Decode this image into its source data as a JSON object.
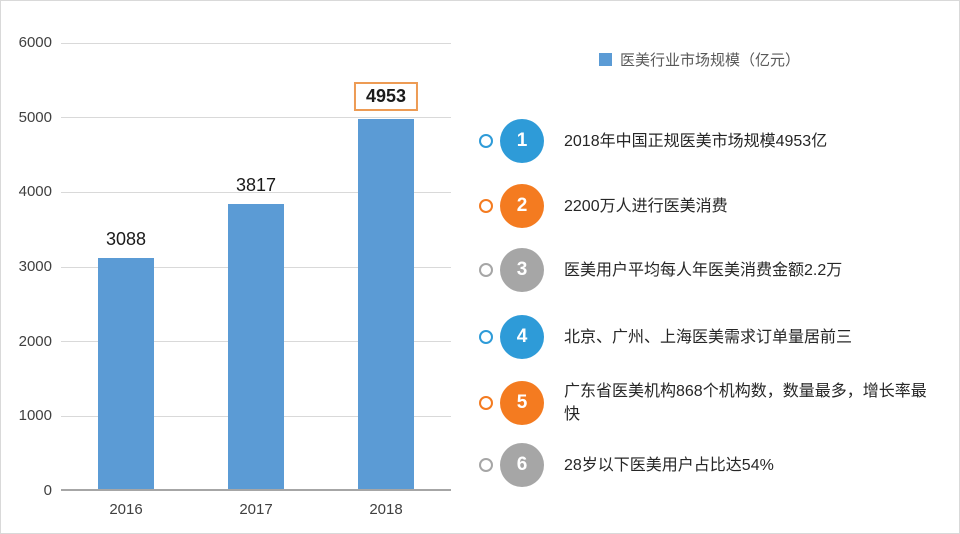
{
  "chart_data": {
    "type": "bar",
    "categories": [
      "2016",
      "2017",
      "2018"
    ],
    "values": [
      3088,
      3817,
      4953
    ],
    "highlight_index": 2,
    "title": "",
    "xlabel": "",
    "ylabel": "",
    "ylim": [
      0,
      6000
    ],
    "yticks": [
      0,
      1000,
      2000,
      3000,
      4000,
      5000,
      6000
    ],
    "grid": true,
    "bar_color": "#5b9bd5",
    "highlight_box_color": "#ed9b54",
    "legend": {
      "label": "医美行业市场规模（亿元）",
      "position": "top-right",
      "swatch_color": "#5b9bd5"
    }
  },
  "facts": [
    {
      "number": "1",
      "color": "#2e9bd8",
      "text": "2018年中国正规医美市场规模4953亿"
    },
    {
      "number": "2",
      "color": "#f47b20",
      "text": "2200万人进行医美消费"
    },
    {
      "number": "3",
      "color": "#a6a6a6",
      "text": "医美用户平均每人年医美消费金额2.2万"
    },
    {
      "number": "4",
      "color": "#2e9bd8",
      "text": "北京、广州、上海医美需求订单量居前三"
    },
    {
      "number": "5",
      "color": "#f47b20",
      "text": "广东省医美机构868个机构数，数量最多，增长率最快"
    },
    {
      "number": "6",
      "color": "#a6a6a6",
      "text": "28岁以下医美用户占比达54%"
    }
  ]
}
